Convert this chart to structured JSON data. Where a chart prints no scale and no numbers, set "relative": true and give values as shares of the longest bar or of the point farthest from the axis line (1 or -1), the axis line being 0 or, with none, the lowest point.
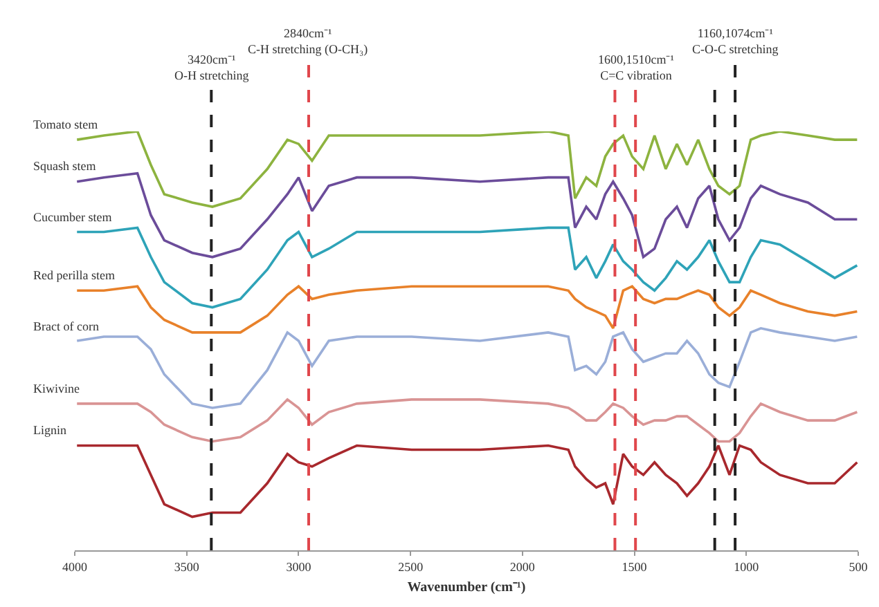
{
  "chart_data": {
    "type": "line",
    "relative": true,
    "xlabel": "Wavenumber (cm⁻¹)",
    "xlim": [
      4000,
      500
    ],
    "xticks": [
      4000,
      3500,
      3000,
      2500,
      2000,
      1500,
      1000,
      500
    ],
    "grid": false,
    "legend": false,
    "marker": "none",
    "line_style": "solid",
    "x": [
      3990,
      3870,
      3720,
      3660,
      3600,
      3475,
      3385,
      3260,
      3140,
      3050,
      3000,
      2940,
      2865,
      2740,
      2495,
      2190,
      1885,
      1795,
      1765,
      1715,
      1670,
      1630,
      1595,
      1550,
      1510,
      1460,
      1410,
      1360,
      1310,
      1265,
      1215,
      1165,
      1125,
      1075,
      1030,
      980,
      935,
      850,
      725,
      605,
      505
    ],
    "series": [
      {
        "name": "Tomato stem",
        "color": "#8db33f",
        "values": [
          0.98,
          0.99,
          1.0,
          0.92,
          0.85,
          0.83,
          0.82,
          0.84,
          0.91,
          0.98,
          0.97,
          0.93,
          0.99,
          0.99,
          0.99,
          0.99,
          1.0,
          0.99,
          0.84,
          0.89,
          0.87,
          0.94,
          0.97,
          0.99,
          0.94,
          0.91,
          0.99,
          0.91,
          0.97,
          0.92,
          0.98,
          0.91,
          0.87,
          0.85,
          0.87,
          0.98,
          0.99,
          1.0,
          0.99,
          0.98,
          0.98
        ]
      },
      {
        "name": "Squash stem",
        "color": "#6b4c9a",
        "values": [
          0.88,
          0.89,
          0.9,
          0.8,
          0.74,
          0.71,
          0.7,
          0.72,
          0.79,
          0.85,
          0.89,
          0.81,
          0.87,
          0.89,
          0.89,
          0.88,
          0.89,
          0.89,
          0.77,
          0.82,
          0.79,
          0.85,
          0.88,
          0.84,
          0.8,
          0.7,
          0.72,
          0.79,
          0.82,
          0.77,
          0.84,
          0.87,
          0.79,
          0.74,
          0.77,
          0.84,
          0.87,
          0.85,
          0.83,
          0.79,
          0.79
        ]
      },
      {
        "name": "Cucumber stem",
        "color": "#2ea3b8",
        "values": [
          0.76,
          0.76,
          0.77,
          0.7,
          0.64,
          0.59,
          0.58,
          0.6,
          0.67,
          0.74,
          0.76,
          0.7,
          0.72,
          0.76,
          0.76,
          0.76,
          0.77,
          0.77,
          0.67,
          0.7,
          0.65,
          0.69,
          0.73,
          0.69,
          0.67,
          0.64,
          0.62,
          0.65,
          0.69,
          0.67,
          0.7,
          0.74,
          0.69,
          0.64,
          0.64,
          0.7,
          0.74,
          0.73,
          0.69,
          0.65,
          0.68
        ]
      },
      {
        "name": "Red perilla stem",
        "color": "#e8812a",
        "values": [
          0.62,
          0.62,
          0.63,
          0.58,
          0.55,
          0.52,
          0.52,
          0.52,
          0.56,
          0.61,
          0.63,
          0.6,
          0.61,
          0.62,
          0.63,
          0.63,
          0.63,
          0.62,
          0.6,
          0.58,
          0.57,
          0.56,
          0.53,
          0.62,
          0.63,
          0.6,
          0.59,
          0.6,
          0.6,
          0.61,
          0.62,
          0.61,
          0.58,
          0.56,
          0.58,
          0.62,
          0.61,
          0.59,
          0.57,
          0.56,
          0.57
        ]
      },
      {
        "name": "Bract of corn",
        "color": "#9aaed8",
        "values": [
          0.5,
          0.51,
          0.51,
          0.48,
          0.42,
          0.35,
          0.34,
          0.35,
          0.43,
          0.52,
          0.5,
          0.44,
          0.5,
          0.51,
          0.51,
          0.5,
          0.52,
          0.51,
          0.43,
          0.44,
          0.42,
          0.45,
          0.51,
          0.52,
          0.48,
          0.45,
          0.46,
          0.47,
          0.47,
          0.5,
          0.47,
          0.42,
          0.4,
          0.39,
          0.45,
          0.52,
          0.53,
          0.52,
          0.51,
          0.5,
          0.51
        ]
      },
      {
        "name": "Kiwivine",
        "color": "#d99494",
        "values": [
          0.35,
          0.35,
          0.35,
          0.33,
          0.3,
          0.27,
          0.26,
          0.27,
          0.31,
          0.36,
          0.34,
          0.3,
          0.33,
          0.35,
          0.36,
          0.36,
          0.35,
          0.34,
          0.33,
          0.31,
          0.31,
          0.33,
          0.35,
          0.34,
          0.32,
          0.3,
          0.31,
          0.31,
          0.32,
          0.32,
          0.3,
          0.28,
          0.26,
          0.26,
          0.28,
          0.32,
          0.35,
          0.33,
          0.31,
          0.31,
          0.33
        ]
      },
      {
        "name": "Lignin",
        "color": "#a8282d",
        "values": [
          0.25,
          0.25,
          0.25,
          0.18,
          0.11,
          0.08,
          0.09,
          0.09,
          0.16,
          0.23,
          0.21,
          0.2,
          0.22,
          0.25,
          0.24,
          0.24,
          0.25,
          0.24,
          0.2,
          0.17,
          0.15,
          0.16,
          0.11,
          0.23,
          0.2,
          0.18,
          0.21,
          0.18,
          0.16,
          0.13,
          0.16,
          0.2,
          0.25,
          0.18,
          0.25,
          0.24,
          0.21,
          0.18,
          0.16,
          0.16,
          0.21
        ]
      }
    ],
    "ref_lines": [
      {
        "axis": "x",
        "value": 3390,
        "label": "3420cm⁻¹\nO-H stretching",
        "color": "#222222",
        "line_style": "dashed"
      },
      {
        "axis": "x",
        "value": 2955,
        "label": "2840cm⁻¹\nC-H stretching (O-CH₃)",
        "color": "#e0474c",
        "line_style": "dashed"
      },
      {
        "axis": "x",
        "value": 1587,
        "label": null,
        "color": "#e0474c",
        "line_style": "dashed"
      },
      {
        "axis": "x",
        "value": 1495,
        "label": "1600,1510cm⁻¹\nC=C vibration",
        "color": "#e0474c",
        "line_style": "dashed"
      },
      {
        "axis": "x",
        "value": 1141,
        "label": null,
        "color": "#222222",
        "line_style": "dashed"
      },
      {
        "axis": "x",
        "value": 1050,
        "label": "1160,1074cm⁻¹\nC-O-C stretching",
        "color": "#222222",
        "line_style": "dashed"
      }
    ]
  }
}
